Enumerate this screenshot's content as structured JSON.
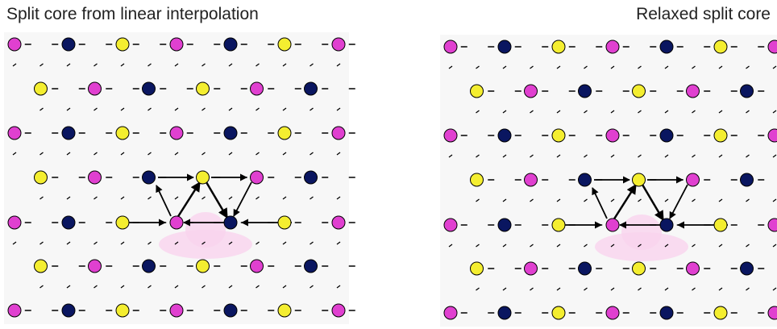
{
  "panels": [
    {
      "title": "Split core from linear interpolation"
    },
    {
      "title": "Relaxed split core"
    }
  ]
}
